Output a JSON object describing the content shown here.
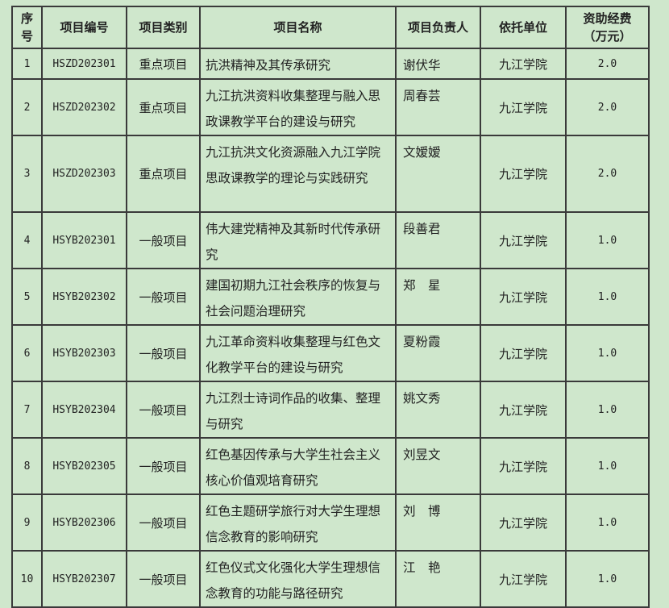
{
  "headers": [
    "序号",
    "项目编号",
    "项目类别",
    "项目名称",
    "项目负责人",
    "依托单位",
    "资助经费（万元）"
  ],
  "header_lines": {
    "seq": [
      "序",
      "号"
    ],
    "fund": [
      "资助经费",
      "（万元）"
    ]
  },
  "rows": [
    {
      "seq": "1",
      "code": "HSZD202301",
      "category": "重点项目",
      "name": "抗洪精神及其传承研究",
      "leader": "谢伏华",
      "unit": "九江学院",
      "fund": "2.0"
    },
    {
      "seq": "2",
      "code": "HSZD202302",
      "category": "重点项目",
      "name": "九江抗洪资料收集整理与融入思政课教学平台的建设与研究",
      "leader": "周春芸",
      "unit": "九江学院",
      "fund": "2.0"
    },
    {
      "seq": "3",
      "code": "HSZD202303",
      "category": "重点项目",
      "name": "九江抗洪文化资源融入九江学院思政课教学的理论与实践研究",
      "leader": "文嫒嫒",
      "unit": "九江学院",
      "fund": "2.0"
    },
    {
      "seq": "4",
      "code": "HSYB202301",
      "category": "一般项目",
      "name": "伟大建党精神及其新时代传承研究",
      "leader": "段善君",
      "unit": "九江学院",
      "fund": "1.0"
    },
    {
      "seq": "5",
      "code": "HSYB202302",
      "category": "一般项目",
      "name": "建国初期九江社会秩序的恢复与社会问题治理研究",
      "leader": "郑　星",
      "unit": "九江学院",
      "fund": "1.0"
    },
    {
      "seq": "6",
      "code": "HSYB202303",
      "category": "一般项目",
      "name": "九江革命资料收集整理与红色文化教学平台的建设与研究",
      "leader": "夏粉霞",
      "unit": "九江学院",
      "fund": "1.0"
    },
    {
      "seq": "7",
      "code": "HSYB202304",
      "category": "一般项目",
      "name": "九江烈士诗词作品的收集、整理与研究",
      "leader": "姚文秀",
      "unit": "九江学院",
      "fund": "1.0"
    },
    {
      "seq": "8",
      "code": "HSYB202305",
      "category": "一般项目",
      "name": "红色基因传承与大学生社会主义核心价值观培育研究",
      "leader": "刘昱文",
      "unit": "九江学院",
      "fund": "1.0"
    },
    {
      "seq": "9",
      "code": "HSYB202306",
      "category": "一般项目",
      "name": "红色主题研学旅行对大学生理想信念教育的影响研究",
      "leader": "刘　博",
      "unit": "九江学院",
      "fund": "1.0"
    },
    {
      "seq": "10",
      "code": "HSYB202307",
      "category": "一般项目",
      "name": "红色仪式文化强化大学生理想信念教育的功能与路径研究",
      "leader": "江　艳",
      "unit": "九江学院",
      "fund": "1.0"
    }
  ]
}
